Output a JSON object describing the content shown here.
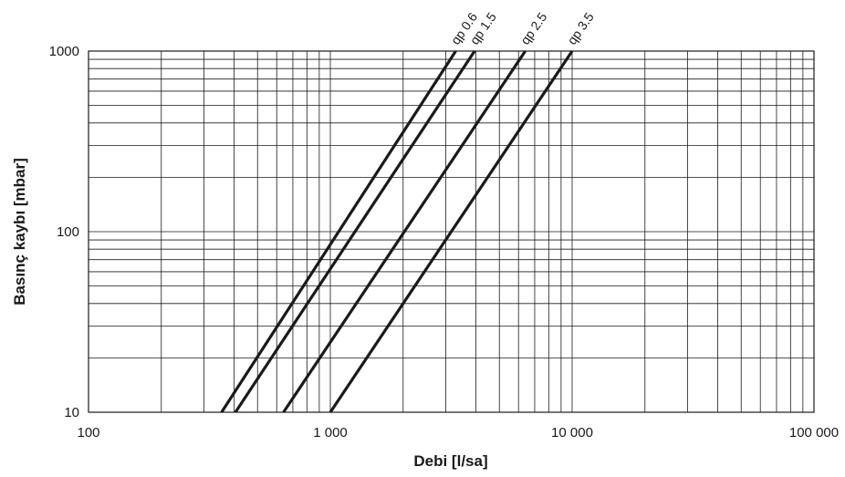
{
  "chart_data": {
    "type": "line",
    "xlabel": "Debi [l/sa]",
    "ylabel": "Basınç kaybı [mbar]",
    "x_scale": "log",
    "y_scale": "log",
    "xlim": [
      100,
      100000
    ],
    "ylim": [
      10,
      1000
    ],
    "grid": true,
    "x_ticks": [
      {
        "value": 100,
        "label": "100"
      },
      {
        "value": 1000,
        "label": "1 000"
      },
      {
        "value": 10000,
        "label": "10 000"
      },
      {
        "value": 100000,
        "label": "100 000"
      }
    ],
    "y_ticks": [
      {
        "value": 10,
        "label": "10"
      },
      {
        "value": 100,
        "label": "100"
      },
      {
        "value": 1000,
        "label": "1000"
      }
    ],
    "series": [
      {
        "name": "qp 0.6",
        "x": [
          355,
          3300
        ],
        "y": [
          10,
          1000
        ]
      },
      {
        "name": "qp 1.5",
        "x": [
          405,
          3950
        ],
        "y": [
          10,
          1000
        ]
      },
      {
        "name": "qp 2.5",
        "x": [
          640,
          6400
        ],
        "y": [
          10,
          1000
        ]
      },
      {
        "name": "qp 3.5",
        "x": [
          1000,
          10000
        ],
        "y": [
          10,
          1000
        ]
      }
    ]
  }
}
